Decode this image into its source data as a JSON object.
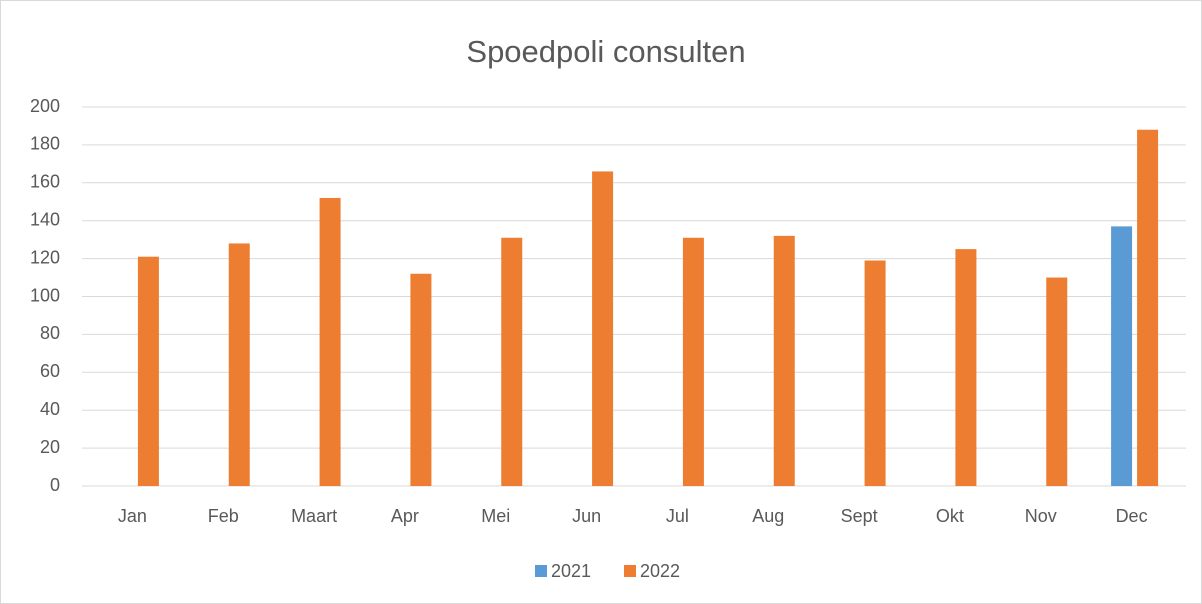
{
  "chart_data": {
    "type": "bar",
    "title": "Spoedpoli consulten",
    "categories": [
      "Jan",
      "Feb",
      "Maart",
      "Apr",
      "Mei",
      "Jun",
      "Jul",
      "Aug",
      "Sept",
      "Okt",
      "Nov",
      "Dec"
    ],
    "series": [
      {
        "name": "2021",
        "color": "#5b9bd5",
        "values": [
          null,
          null,
          null,
          null,
          null,
          null,
          null,
          null,
          null,
          null,
          null,
          137
        ]
      },
      {
        "name": "2022",
        "color": "#ed7d31",
        "values": [
          121,
          128,
          152,
          112,
          131,
          166,
          131,
          132,
          119,
          125,
          110,
          188
        ]
      }
    ],
    "ylim": [
      0,
      200
    ],
    "yticks": [
      0,
      20,
      40,
      60,
      80,
      100,
      120,
      140,
      160,
      180,
      200
    ],
    "grid": true,
    "legend": "bottom"
  }
}
